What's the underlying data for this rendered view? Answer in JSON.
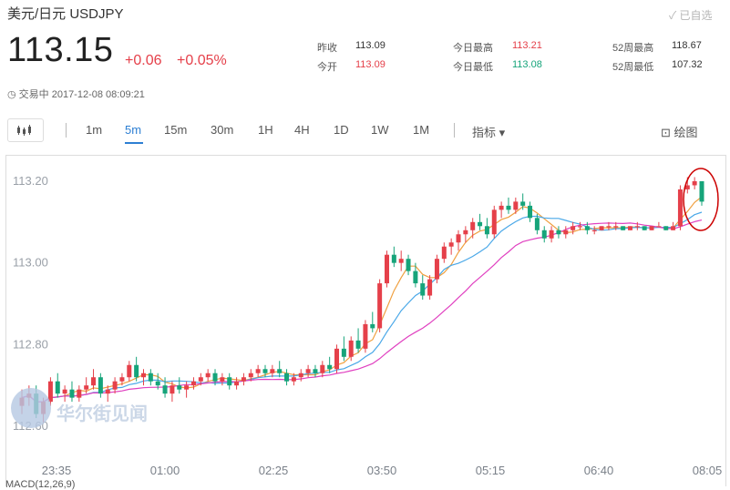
{
  "header": {
    "title": "美元/日元  USDJPY",
    "favorite_label": "已自选",
    "price": "113.15",
    "change": "+0.06",
    "change_pct": "+0.05%",
    "status": "交易中 2017-12-08 08:09:21"
  },
  "stats": {
    "prev_close_label": "昨收",
    "prev_close": "113.09",
    "open_label": "今开",
    "open": "113.09",
    "high_label": "今日最高",
    "high": "113.21",
    "low_label": "今日最低",
    "low": "113.08",
    "w52_high_label": "52周最高",
    "w52_high": "118.67",
    "w52_low_label": "52周最低",
    "w52_low": "107.32"
  },
  "toolbar": {
    "periods": [
      "1m",
      "5m",
      "15m",
      "30m",
      "1H",
      "4H",
      "1D",
      "1W",
      "1M"
    ],
    "active_period": "5m",
    "indicator_label": "指标",
    "draw_label": "绘图"
  },
  "watermark": "华尔街见闻",
  "macd_label": "MACD(12,26,9)",
  "colors": {
    "up": "#e5404a",
    "down": "#16a47a",
    "accent": "#2d7fd3",
    "ma_short": "#f0a040",
    "ma_mid": "#4aa8e8",
    "ma_long": "#e040c0",
    "highlight": "#cc0000"
  },
  "chart_data": {
    "type": "candlestick",
    "y_ticks": [
      "113.20",
      "113.00",
      "112.80",
      "112.60"
    ],
    "x_ticks": [
      "23:35",
      "01:00",
      "02:25",
      "03:50",
      "05:15",
      "06:40",
      "08:05"
    ],
    "ylim": [
      112.58,
      113.22
    ],
    "candles": [
      [
        112.65,
        112.69,
        112.63,
        112.67
      ],
      [
        112.67,
        112.7,
        112.65,
        112.68
      ],
      [
        112.68,
        112.7,
        112.62,
        112.63
      ],
      [
        112.63,
        112.67,
        112.61,
        112.66
      ],
      [
        112.66,
        112.72,
        112.65,
        112.71
      ],
      [
        112.71,
        112.73,
        112.67,
        112.68
      ],
      [
        112.68,
        112.7,
        112.66,
        112.69
      ],
      [
        112.69,
        112.71,
        112.66,
        112.67
      ],
      [
        112.67,
        112.7,
        112.66,
        112.69
      ],
      [
        112.69,
        112.72,
        112.68,
        112.7
      ],
      [
        112.7,
        112.74,
        112.69,
        112.72
      ],
      [
        112.72,
        112.73,
        112.67,
        112.68
      ],
      [
        112.68,
        112.7,
        112.66,
        112.69
      ],
      [
        112.69,
        112.72,
        112.68,
        112.71
      ],
      [
        112.71,
        112.73,
        112.7,
        112.72
      ],
      [
        112.72,
        112.76,
        112.71,
        112.75
      ],
      [
        112.75,
        112.77,
        112.71,
        112.72
      ],
      [
        112.72,
        112.74,
        112.7,
        112.73
      ],
      [
        112.73,
        112.74,
        112.7,
        112.71
      ],
      [
        112.71,
        112.73,
        112.69,
        112.7
      ],
      [
        112.7,
        112.72,
        112.67,
        112.68
      ],
      [
        112.68,
        112.71,
        112.66,
        112.7
      ],
      [
        112.7,
        112.72,
        112.68,
        112.69
      ],
      [
        112.69,
        112.71,
        112.67,
        112.7
      ],
      [
        112.7,
        112.72,
        112.69,
        112.71
      ],
      [
        112.71,
        112.73,
        112.7,
        112.72
      ],
      [
        112.72,
        112.74,
        112.71,
        112.73
      ],
      [
        112.73,
        112.74,
        112.7,
        112.71
      ],
      [
        112.71,
        112.73,
        112.7,
        112.72
      ],
      [
        112.72,
        112.73,
        112.69,
        112.7
      ],
      [
        112.7,
        112.72,
        112.69,
        112.71
      ],
      [
        112.71,
        112.73,
        112.7,
        112.72
      ],
      [
        112.72,
        112.74,
        112.71,
        112.73
      ],
      [
        112.73,
        112.75,
        112.72,
        112.74
      ],
      [
        112.74,
        112.75,
        112.72,
        112.73
      ],
      [
        112.73,
        112.75,
        112.72,
        112.74
      ],
      [
        112.74,
        112.76,
        112.72,
        112.73
      ],
      [
        112.73,
        112.74,
        112.7,
        112.71
      ],
      [
        112.71,
        112.73,
        112.7,
        112.72
      ],
      [
        112.72,
        112.74,
        112.71,
        112.73
      ],
      [
        112.73,
        112.75,
        112.72,
        112.74
      ],
      [
        112.74,
        112.75,
        112.72,
        112.73
      ],
      [
        112.73,
        112.76,
        112.72,
        112.75
      ],
      [
        112.75,
        112.77,
        112.73,
        112.74
      ],
      [
        112.74,
        112.8,
        112.73,
        112.79
      ],
      [
        112.79,
        112.82,
        112.76,
        112.77
      ],
      [
        112.77,
        112.82,
        112.76,
        112.81
      ],
      [
        112.81,
        112.84,
        112.78,
        112.79
      ],
      [
        112.79,
        112.86,
        112.78,
        112.85
      ],
      [
        112.85,
        112.88,
        112.83,
        112.84
      ],
      [
        112.84,
        112.96,
        112.83,
        112.95
      ],
      [
        112.95,
        113.03,
        112.94,
        113.02
      ],
      [
        113.02,
        113.04,
        112.99,
        113.0
      ],
      [
        113.0,
        113.03,
        112.98,
        113.01
      ],
      [
        113.01,
        113.02,
        112.97,
        112.98
      ],
      [
        112.98,
        113.0,
        112.94,
        112.95
      ],
      [
        112.95,
        112.97,
        112.91,
        112.92
      ],
      [
        112.92,
        112.97,
        112.91,
        112.96
      ],
      [
        112.96,
        113.02,
        112.95,
        113.01
      ],
      [
        113.01,
        113.05,
        113.0,
        113.04
      ],
      [
        113.04,
        113.06,
        113.02,
        113.05
      ],
      [
        113.05,
        113.08,
        113.03,
        113.07
      ],
      [
        113.07,
        113.09,
        113.05,
        113.08
      ],
      [
        113.08,
        113.11,
        113.06,
        113.1
      ],
      [
        113.1,
        113.12,
        113.08,
        113.09
      ],
      [
        113.09,
        113.11,
        113.06,
        113.07
      ],
      [
        113.07,
        113.14,
        113.06,
        113.13
      ],
      [
        113.13,
        113.15,
        113.11,
        113.14
      ],
      [
        113.14,
        113.16,
        113.12,
        113.13
      ],
      [
        113.13,
        113.16,
        113.12,
        113.15
      ],
      [
        113.15,
        113.17,
        113.13,
        113.14
      ],
      [
        113.14,
        113.15,
        113.1,
        113.11
      ],
      [
        113.11,
        113.12,
        113.07,
        113.08
      ],
      [
        113.08,
        113.09,
        113.05,
        113.06
      ],
      [
        113.06,
        113.09,
        113.05,
        113.08
      ],
      [
        113.08,
        113.09,
        113.06,
        113.07
      ],
      [
        113.07,
        113.09,
        113.06,
        113.08
      ],
      [
        113.08,
        113.1,
        113.07,
        113.09
      ],
      [
        113.09,
        113.1,
        113.08,
        113.09
      ],
      [
        113.09,
        113.1,
        113.07,
        113.08
      ],
      [
        113.08,
        113.09,
        113.07,
        113.08
      ],
      [
        113.08,
        113.09,
        113.08,
        113.09
      ],
      [
        113.09,
        113.1,
        113.08,
        113.09
      ],
      [
        113.09,
        113.1,
        113.08,
        113.09
      ],
      [
        113.09,
        113.09,
        113.08,
        113.08
      ],
      [
        113.08,
        113.09,
        113.08,
        113.09
      ],
      [
        113.09,
        113.1,
        113.08,
        113.09
      ],
      [
        113.09,
        113.09,
        113.08,
        113.08
      ],
      [
        113.08,
        113.09,
        113.08,
        113.09
      ],
      [
        113.09,
        113.1,
        113.09,
        113.09
      ],
      [
        113.09,
        113.09,
        113.08,
        113.08
      ],
      [
        113.08,
        113.1,
        113.08,
        113.09
      ],
      [
        113.09,
        113.19,
        113.08,
        113.18
      ],
      [
        113.18,
        113.21,
        113.17,
        113.19
      ],
      [
        113.19,
        113.21,
        113.18,
        113.2
      ],
      [
        113.2,
        113.2,
        113.14,
        113.15
      ]
    ]
  }
}
